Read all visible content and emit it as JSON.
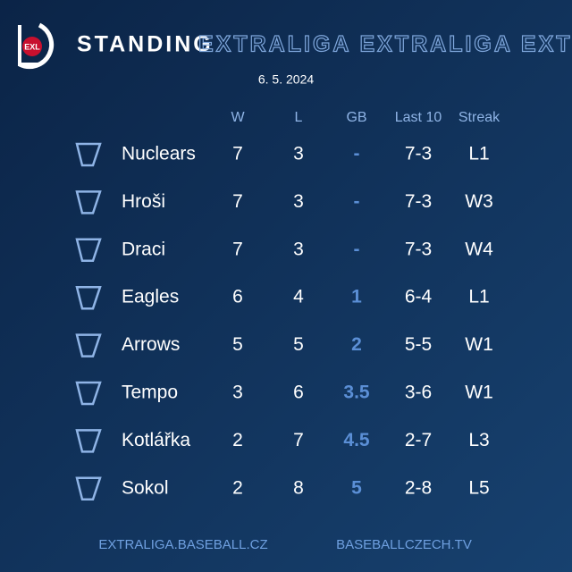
{
  "header": {
    "logo": "EXL",
    "title": "STANDING",
    "banner": "EXTRALIGA EXTRALIGA EXTRALIG",
    "date": "6. 5. 2024"
  },
  "table": {
    "columns": [
      "W",
      "L",
      "GB",
      "Last 10",
      "Streak"
    ],
    "rows": [
      {
        "team": "Nuclears",
        "w": 7,
        "l": 3,
        "gb": "-",
        "last10": "7-3",
        "streak": "L1"
      },
      {
        "team": "Hroši",
        "w": 7,
        "l": 3,
        "gb": "-",
        "last10": "7-3",
        "streak": "W3"
      },
      {
        "team": "Draci",
        "w": 7,
        "l": 3,
        "gb": "-",
        "last10": "7-3",
        "streak": "W4"
      },
      {
        "team": "Eagles",
        "w": 6,
        "l": 4,
        "gb": 1,
        "last10": "6-4",
        "streak": "L1"
      },
      {
        "team": "Arrows",
        "w": 5,
        "l": 5,
        "gb": 2,
        "last10": "5-5",
        "streak": "W1"
      },
      {
        "team": "Tempo",
        "w": 3,
        "l": 6,
        "gb": 3.5,
        "last10": "3-6",
        "streak": "W1"
      },
      {
        "team": "Kotlářka",
        "w": 2,
        "l": 7,
        "gb": 4.5,
        "last10": "2-7",
        "streak": "L3"
      },
      {
        "team": "Sokol",
        "w": 2,
        "l": 8,
        "gb": 5,
        "last10": "2-8",
        "streak": "L5"
      }
    ]
  },
  "footer": {
    "left": "EXTRALIGA.BASEBALL.CZ",
    "right": "BASEBALLCZECH.TV"
  }
}
